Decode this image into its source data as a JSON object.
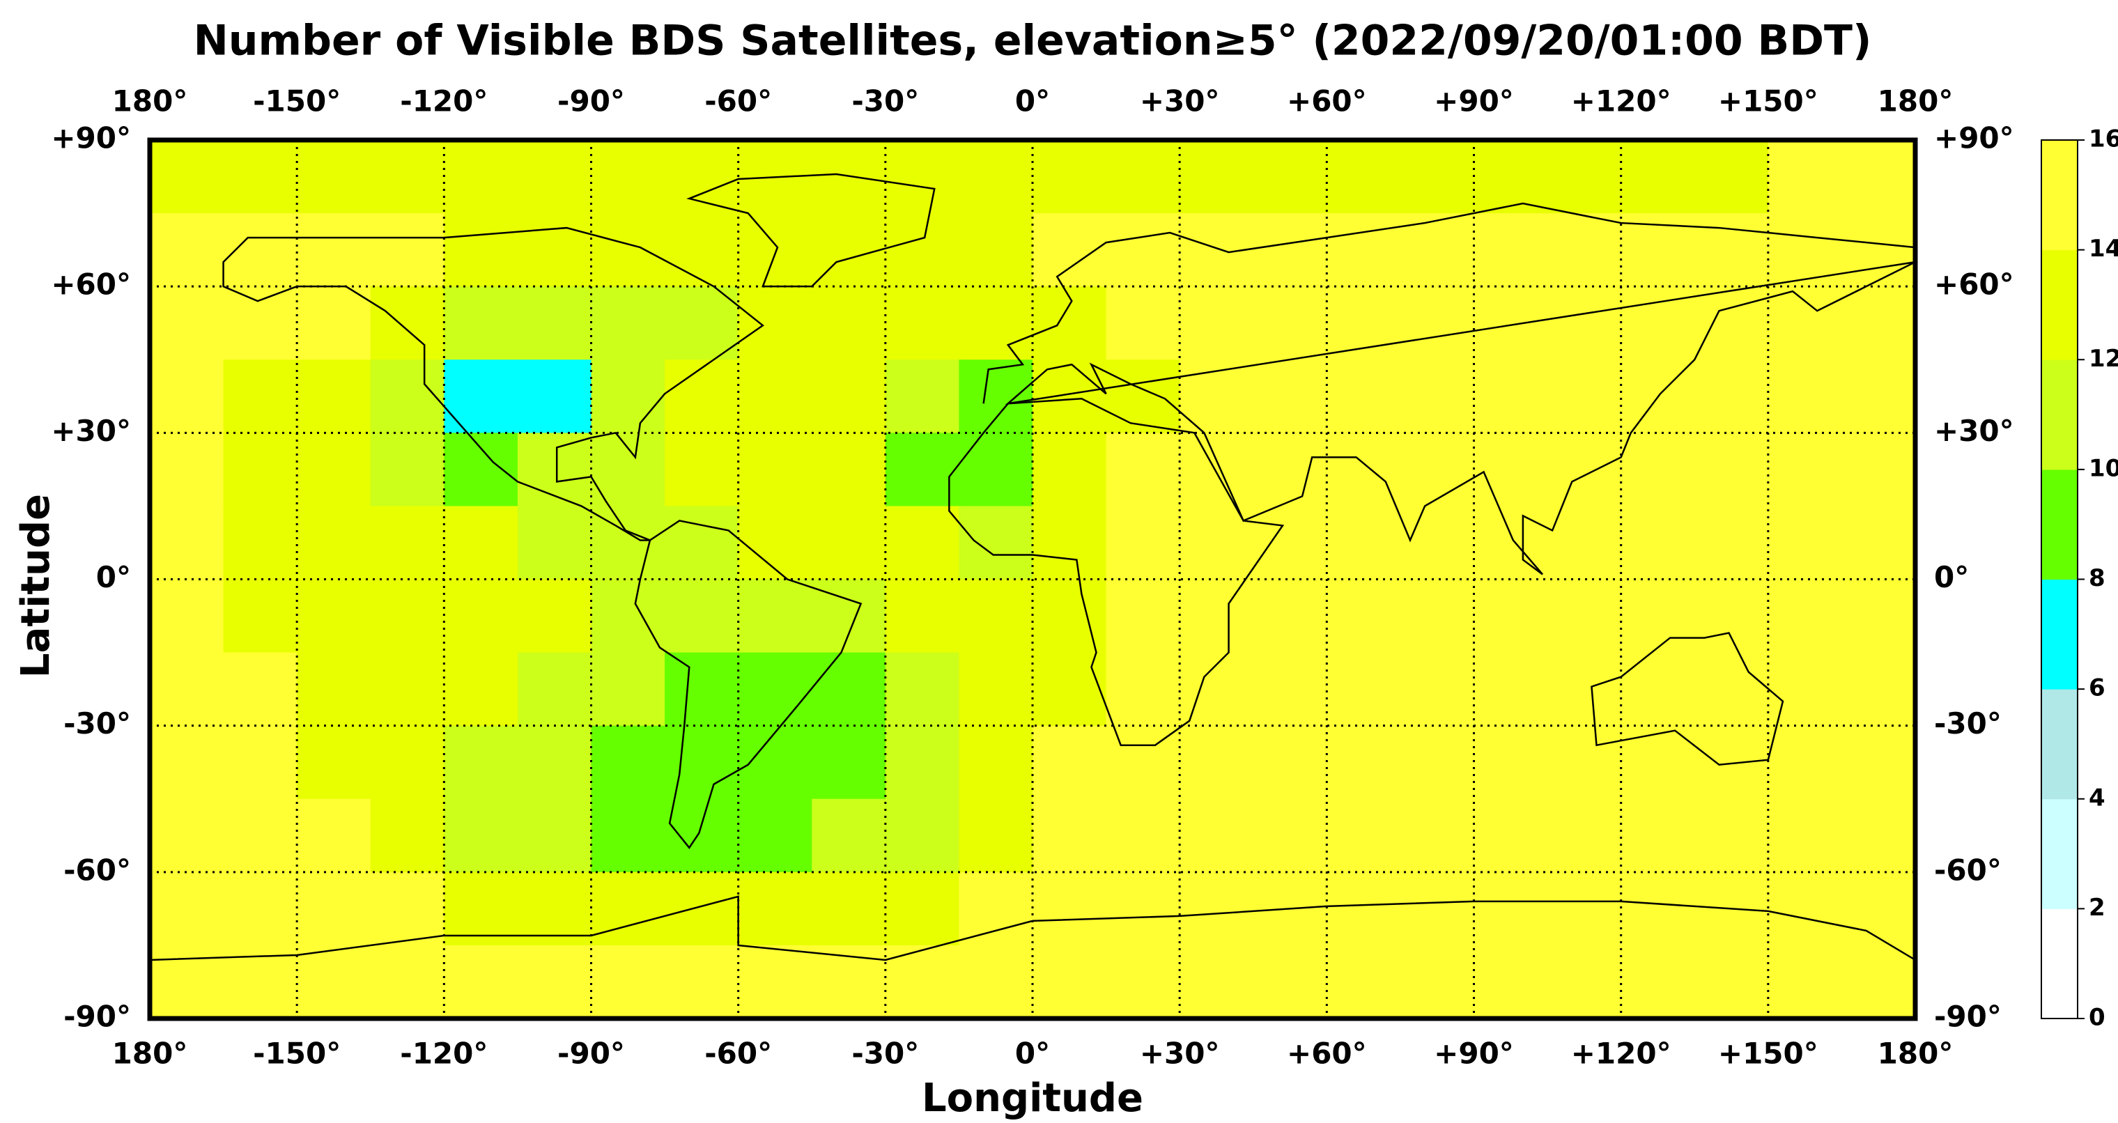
{
  "chart_data": {
    "type": "heatmap",
    "title": "Number of Visible BDS Satellites, elevation≥5° (2022/09/20/01:00 BDT)",
    "x_label": "Longitude",
    "y_label": "Latitude",
    "xlim": [
      -180,
      180
    ],
    "ylim": [
      -90,
      90
    ],
    "xticks": [
      {
        "value": -180,
        "label": "180°"
      },
      {
        "value": -150,
        "label": "-150°"
      },
      {
        "value": -120,
        "label": "-120°"
      },
      {
        "value": -90,
        "label": "-90°"
      },
      {
        "value": -60,
        "label": "-60°"
      },
      {
        "value": -30,
        "label": "-30°"
      },
      {
        "value": 0,
        "label": "0°"
      },
      {
        "value": 30,
        "label": "+30°"
      },
      {
        "value": 60,
        "label": "+60°"
      },
      {
        "value": 90,
        "label": "+90°"
      },
      {
        "value": 120,
        "label": "+120°"
      },
      {
        "value": 150,
        "label": "+150°"
      },
      {
        "value": 180,
        "label": "180°"
      }
    ],
    "yticks": [
      {
        "value": 90,
        "label": "+90°"
      },
      {
        "value": 60,
        "label": "+60°"
      },
      {
        "value": 30,
        "label": "+30°"
      },
      {
        "value": 0,
        "label": "0°"
      },
      {
        "value": -30,
        "label": "-30°"
      },
      {
        "value": -60,
        "label": "-60°"
      },
      {
        "value": -90,
        "label": "-90°"
      }
    ],
    "grid": true,
    "xbins": [
      -180,
      -165,
      -150,
      -135,
      -120,
      -105,
      -90,
      -75,
      -60,
      -45,
      -30,
      -15,
      0,
      15,
      30,
      45,
      60,
      75,
      90,
      105,
      120,
      135,
      150,
      165,
      180
    ],
    "ybins": [
      90,
      75,
      60,
      45,
      30,
      15,
      0,
      -15,
      -30,
      -45,
      -60,
      -75,
      -90
    ],
    "z": [
      [
        13,
        13,
        13,
        13,
        13,
        13,
        13,
        13,
        13,
        13,
        13,
        13,
        13,
        13,
        13,
        13,
        13,
        13,
        13,
        13,
        13,
        13,
        15,
        15
      ],
      [
        15,
        15,
        15,
        15,
        13,
        13,
        13,
        13,
        13,
        13,
        13,
        13,
        15,
        15,
        15,
        15,
        15,
        15,
        15,
        15,
        15,
        15,
        15,
        15
      ],
      [
        15,
        15,
        15,
        13,
        11,
        11,
        11,
        11,
        13,
        13,
        13,
        13,
        13,
        15,
        15,
        15,
        15,
        15,
        15,
        15,
        15,
        15,
        15,
        15
      ],
      [
        15,
        13,
        13,
        11,
        7,
        7,
        11,
        13,
        13,
        13,
        11,
        9,
        13,
        13,
        15,
        15,
        15,
        15,
        15,
        15,
        15,
        15,
        15,
        15
      ],
      [
        15,
        13,
        13,
        11,
        9,
        11,
        11,
        13,
        13,
        13,
        9,
        9,
        13,
        15,
        15,
        15,
        15,
        15,
        15,
        15,
        15,
        15,
        15,
        15
      ],
      [
        15,
        13,
        13,
        13,
        13,
        11,
        11,
        11,
        13,
        13,
        13,
        11,
        13,
        15,
        15,
        15,
        15,
        15,
        15,
        15,
        15,
        15,
        15,
        15
      ],
      [
        15,
        13,
        13,
        13,
        13,
        13,
        11,
        11,
        11,
        11,
        13,
        13,
        13,
        15,
        15,
        15,
        15,
        15,
        15,
        15,
        15,
        15,
        15,
        15
      ],
      [
        15,
        15,
        13,
        13,
        13,
        11,
        11,
        9,
        9,
        9,
        11,
        13,
        13,
        15,
        15,
        15,
        15,
        15,
        15,
        15,
        15,
        15,
        15,
        15
      ],
      [
        15,
        15,
        13,
        13,
        11,
        11,
        9,
        9,
        9,
        9,
        11,
        13,
        15,
        15,
        15,
        15,
        15,
        15,
        15,
        15,
        15,
        15,
        15,
        15
      ],
      [
        15,
        15,
        15,
        13,
        11,
        11,
        9,
        9,
        9,
        11,
        11,
        13,
        15,
        15,
        15,
        15,
        15,
        15,
        15,
        15,
        15,
        15,
        15,
        15
      ],
      [
        15,
        15,
        15,
        15,
        13,
        13,
        13,
        13,
        13,
        13,
        13,
        15,
        15,
        15,
        15,
        15,
        15,
        15,
        15,
        15,
        15,
        15,
        15,
        15
      ],
      [
        15,
        15,
        15,
        15,
        15,
        15,
        15,
        15,
        15,
        15,
        15,
        15,
        15,
        15,
        15,
        15,
        15,
        15,
        15,
        15,
        15,
        15,
        15,
        15
      ]
    ],
    "colorbar": {
      "ticks": [
        0,
        2,
        4,
        6,
        8,
        10,
        12,
        14,
        16
      ],
      "colors": [
        "#ffffff",
        "#ccffff",
        "#b0e8e8",
        "#00ffff",
        "#66ff00",
        "#ccff1a",
        "#e8ff00",
        "#ffff33"
      ]
    }
  }
}
